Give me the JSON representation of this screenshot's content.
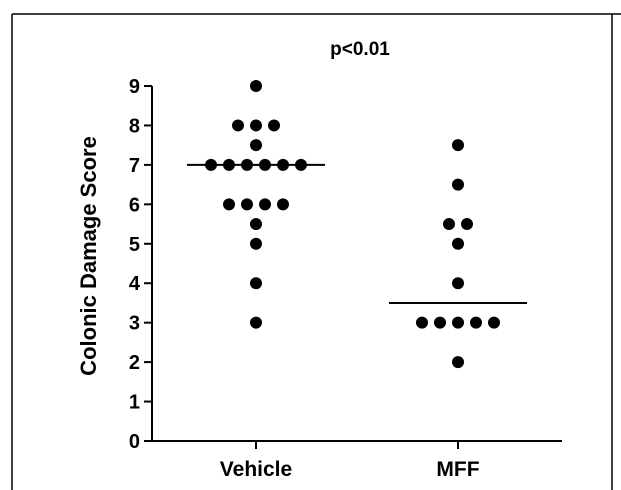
{
  "chart_data": {
    "type": "scatter",
    "title": "",
    "annotation": "p<0.01",
    "xlabel": "",
    "ylabel": "Colonic Damage Score",
    "ylim": [
      0,
      9
    ],
    "yticks": [
      "0",
      "1",
      "2",
      "3",
      "4",
      "5",
      "6",
      "7",
      "8",
      "9"
    ],
    "categories": [
      "Vehicle",
      "MFF"
    ],
    "grid": false,
    "legend": "none",
    "point_color": "#000000",
    "series": [
      {
        "category": "Vehicle",
        "values": [
          9,
          8,
          8,
          8,
          7.5,
          7,
          7,
          7,
          7,
          7,
          7,
          6,
          6,
          6,
          6,
          5.5,
          5,
          4,
          3
        ],
        "median": 7
      },
      {
        "category": "MFF",
        "values": [
          7.5,
          6.5,
          5.5,
          5.5,
          5,
          4,
          3,
          3,
          3,
          3,
          3,
          2
        ],
        "median": 3.5
      }
    ]
  }
}
